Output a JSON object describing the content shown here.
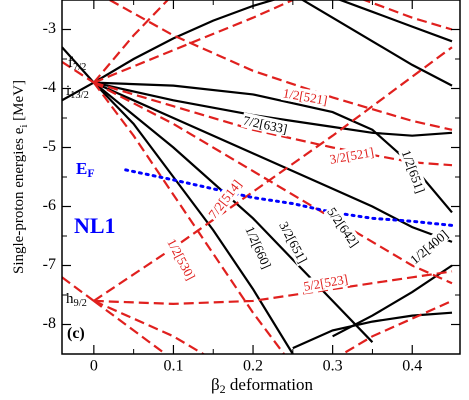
{
  "chart_data": {
    "type": "line",
    "xlabel": {
      "text": "β",
      "sub": "2",
      "after": "  deformation"
    },
    "ylabel": {
      "text": "Single-proton energies  e",
      "sub": "i",
      "after": " [MeV]"
    },
    "xlim": [
      -0.04,
      0.46
    ],
    "ylim": [
      -8.5,
      -2.5
    ],
    "xticks": [
      0,
      0.1,
      0.2,
      0.3,
      0.4
    ],
    "yticks": [
      -8,
      -7,
      -6,
      -5,
      -4,
      -3
    ],
    "series": [
      {
        "color": "#000000",
        "style": "solid",
        "x": [
          0,
          0.05,
          0.1,
          0.15,
          0.2,
          0.25
        ],
        "values": [
          -3.9,
          -3.5,
          -3.15,
          -2.85,
          -2.6,
          -2.4
        ]
      },
      {
        "color": "#000000",
        "style": "solid",
        "x": [
          0,
          0.1,
          0.2,
          0.3,
          0.35,
          0.4,
          0.45
        ],
        "values": [
          -3.9,
          -3.95,
          -4.1,
          -4.4,
          -4.7,
          -5.3,
          -6.1
        ]
      },
      {
        "color": "#000000",
        "style": "solid",
        "x": [
          0,
          0.1,
          0.2,
          0.3,
          0.35,
          0.4,
          0.45
        ],
        "values": [
          -3.9,
          -4.2,
          -4.45,
          -4.65,
          -4.75,
          -4.8,
          -4.75
        ]
      },
      {
        "color": "#000000",
        "style": "solid",
        "x": [
          0,
          0.1,
          0.2,
          0.3,
          0.35,
          0.4,
          0.45
        ],
        "values": [
          -3.9,
          -4.5,
          -5.1,
          -5.7,
          -6.0,
          -6.35,
          -6.6
        ]
      },
      {
        "color": "#000000",
        "style": "solid",
        "x": [
          0,
          0.1,
          0.2,
          0.25,
          0.3,
          0.35
        ],
        "values": [
          -3.9,
          -5.0,
          -6.2,
          -6.9,
          -7.6,
          -8.3
        ]
      },
      {
        "color": "#000000",
        "style": "solid",
        "x": [
          0,
          0.05,
          0.1,
          0.15,
          0.2,
          0.25
        ],
        "values": [
          -3.9,
          -4.6,
          -5.5,
          -6.4,
          -7.4,
          -8.5
        ]
      },
      {
        "color": "#000000",
        "style": "solid",
        "x": [
          0.3,
          0.35,
          0.4,
          0.45
        ],
        "values": [
          -8.2,
          -7.85,
          -7.45,
          -7.0
        ]
      },
      {
        "color": "#000000",
        "style": "solid",
        "x": [
          0.25,
          0.3,
          0.35,
          0.4,
          0.45
        ],
        "values": [
          -8.4,
          -8.1,
          -7.95,
          -7.85,
          -7.8
        ]
      },
      {
        "color": "#000000",
        "style": "solid",
        "x": [
          0.25,
          0.3,
          0.35,
          0.4,
          0.45
        ],
        "values": [
          -2.4,
          -2.8,
          -3.2,
          -3.6,
          -3.95
        ]
      },
      {
        "color": "#000000",
        "style": "solid",
        "x": [
          0.3,
          0.35,
          0.4,
          0.45
        ],
        "values": [
          -2.45,
          -2.7,
          -2.95,
          -3.2
        ]
      },
      {
        "color": "#000000",
        "style": "solid",
        "x": [
          -0.04,
          0
        ],
        "values": [
          -3.3,
          -3.9
        ]
      },
      {
        "color": "#000000",
        "style": "solid",
        "x": [
          -0.04,
          0
        ],
        "values": [
          -4.2,
          -3.9
        ]
      },
      {
        "color": "#e0201e",
        "style": "dashed",
        "x": [
          -0.04,
          0
        ],
        "values": [
          -3.55,
          -3.9
        ]
      },
      {
        "color": "#e0201e",
        "style": "dashed",
        "x": [
          -0.04,
          0
        ],
        "values": [
          -7.2,
          -7.6
        ]
      },
      {
        "color": "#e0201e",
        "style": "dashed",
        "x": [
          0,
          0.05,
          0.1
        ],
        "values": [
          -3.9,
          -3.1,
          -2.4
        ]
      },
      {
        "color": "#e0201e",
        "style": "dashed",
        "x": [
          0,
          0.1,
          0.2,
          0.25
        ],
        "values": [
          -3.9,
          -3.35,
          -2.8,
          -2.5
        ]
      },
      {
        "color": "#e0201e",
        "style": "dashed",
        "x": [
          0.02,
          0.1,
          0.2,
          0.3,
          0.4,
          0.45
        ],
        "values": [
          -2.5,
          -3.1,
          -3.7,
          -4.15,
          -4.55,
          -4.7
        ]
      },
      {
        "color": "#e0201e",
        "style": "dashed",
        "x": [
          0,
          0.1,
          0.2,
          0.3,
          0.4,
          0.45
        ],
        "values": [
          -3.9,
          -4.3,
          -4.7,
          -5.0,
          -5.25,
          -5.3
        ]
      },
      {
        "color": "#e0201e",
        "style": "dashed",
        "x": [
          0,
          0.1,
          0.2,
          0.3,
          0.4,
          0.45
        ],
        "values": [
          -7.6,
          -6.7,
          -5.75,
          -4.8,
          -3.8,
          -3.3
        ]
      },
      {
        "color": "#e0201e",
        "style": "dashed",
        "x": [
          0,
          0.05,
          0.1,
          0.15,
          0.2,
          0.25
        ],
        "values": [
          -3.9,
          -4.8,
          -5.8,
          -6.8,
          -7.8,
          -8.7
        ]
      },
      {
        "color": "#e0201e",
        "style": "dashed",
        "x": [
          0,
          0.1,
          0.2,
          0.3,
          0.4,
          0.45
        ],
        "values": [
          -7.6,
          -7.65,
          -7.6,
          -7.4,
          -7.2,
          -7.1
        ]
      },
      {
        "color": "#e0201e",
        "style": "dashed",
        "x": [
          0,
          0.05,
          0.1,
          0.15
        ],
        "values": [
          -7.6,
          -7.9,
          -8.2,
          -8.6
        ]
      },
      {
        "color": "#e0201e",
        "style": "dashed",
        "x": [
          0,
          0.05,
          0.1
        ],
        "values": [
          -7.6,
          -8.1,
          -8.6
        ]
      },
      {
        "color": "#e0201e",
        "style": "dashed",
        "x": [
          0,
          0.1,
          0.2,
          0.3,
          0.4,
          0.45
        ],
        "values": [
          -3.9,
          -4.6,
          -5.4,
          -6.2,
          -7.0,
          -7.3
        ]
      },
      {
        "color": "#e0201e",
        "style": "dashed",
        "x": [
          0.3,
          0.35,
          0.4,
          0.45
        ],
        "values": [
          -2.3,
          -2.55,
          -2.8,
          -3.0
        ]
      },
      {
        "color": "#e0201e",
        "style": "dashed",
        "x": [
          0.3,
          0.35,
          0.4,
          0.45
        ],
        "values": [
          -8.6,
          -8.2,
          -7.9,
          -7.6
        ]
      },
      {
        "color": "#0000ff",
        "style": "dotted",
        "x": [
          0.04,
          0.1,
          0.15,
          0.2,
          0.25,
          0.3,
          0.35,
          0.4,
          0.45
        ],
        "values": [
          -5.38,
          -5.55,
          -5.7,
          -5.85,
          -5.95,
          -6.1,
          -6.2,
          -6.25,
          -6.32
        ]
      }
    ],
    "annotations": [
      {
        "text": "f",
        "sub": "7/2",
        "color": "#000000"
      },
      {
        "text": "i",
        "sub": "13/2",
        "color": "#000000"
      },
      {
        "text": "h",
        "sub": "9/2",
        "color": "#000000"
      },
      {
        "text": "E",
        "sub": "F",
        "color": "#0000ff"
      },
      {
        "text": "NL1",
        "color": "#0000ff"
      },
      {
        "text": "(c)",
        "color": "#000000"
      },
      {
        "text": "1/2[521]",
        "color": "#e0201e"
      },
      {
        "text": "7/2[633]",
        "color": "#000000"
      },
      {
        "text": "3/2[521]",
        "color": "#e0201e"
      },
      {
        "text": "7/2[514]",
        "color": "#e0201e"
      },
      {
        "text": "1/2[651]",
        "color": "#000000"
      },
      {
        "text": "5/2[642]",
        "color": "#000000"
      },
      {
        "text": "3/2[651]",
        "color": "#000000"
      },
      {
        "text": "1/2[660]",
        "color": "#000000"
      },
      {
        "text": "1/2[530]",
        "color": "#e0201e"
      },
      {
        "text": "5/2[523]",
        "color": "#e0201e"
      },
      {
        "text": "1/2[400]",
        "color": "#000000"
      }
    ]
  }
}
